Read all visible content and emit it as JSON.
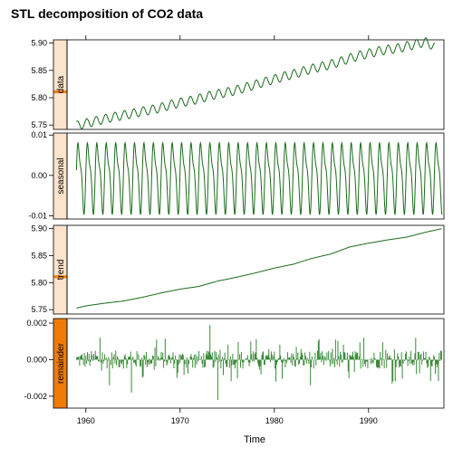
{
  "chart_data": {
    "type": "line",
    "title": "STL decomposition of CO2 data",
    "xlabel": "Time",
    "xlim": [
      1958.0,
      1998.0
    ],
    "x_ticks": [
      1960,
      1970,
      1980,
      1990
    ],
    "x_tick_labels": [
      "1960",
      "1970",
      "1980",
      "1990"
    ],
    "line_color": "#1b6b1b",
    "remainder_color": "#3c8a3c",
    "strip_fill": "#fde3cc",
    "strip_fill_active": "#f07b06",
    "marker_color": "#f07b06",
    "panels": [
      {
        "name": "data",
        "ylim": [
          5.742,
          5.906
        ],
        "y_ticks": [
          5.75,
          5.8,
          5.85,
          5.9
        ],
        "y_tick_labels": [
          "5.75",
          "5.80",
          "5.85",
          "5.90"
        ],
        "strip_active": false,
        "marker_frac": 0.42,
        "series": [
          {
            "x": 1959.0,
            "y": 5.749
          },
          {
            "x": 1960.0,
            "y": 5.753
          },
          {
            "x": 1961.0,
            "y": 5.757
          },
          {
            "x": 1962.0,
            "y": 5.761
          },
          {
            "x": 1963.0,
            "y": 5.765
          },
          {
            "x": 1964.0,
            "y": 5.768
          },
          {
            "x": 1965.0,
            "y": 5.771
          },
          {
            "x": 1966.0,
            "y": 5.775
          },
          {
            "x": 1967.0,
            "y": 5.778
          },
          {
            "x": 1968.0,
            "y": 5.782
          },
          {
            "x": 1969.0,
            "y": 5.787
          },
          {
            "x": 1970.0,
            "y": 5.791
          },
          {
            "x": 1971.0,
            "y": 5.794
          },
          {
            "x": 1972.0,
            "y": 5.798
          },
          {
            "x": 1973.0,
            "y": 5.803
          },
          {
            "x": 1974.0,
            "y": 5.807
          },
          {
            "x": 1975.0,
            "y": 5.81
          },
          {
            "x": 1976.0,
            "y": 5.814
          },
          {
            "x": 1977.0,
            "y": 5.819
          },
          {
            "x": 1978.0,
            "y": 5.824
          },
          {
            "x": 1979.0,
            "y": 5.829
          },
          {
            "x": 1980.0,
            "y": 5.834
          },
          {
            "x": 1981.0,
            "y": 5.839
          },
          {
            "x": 1982.0,
            "y": 5.843
          },
          {
            "x": 1983.0,
            "y": 5.848
          },
          {
            "x": 1984.0,
            "y": 5.853
          },
          {
            "x": 1985.0,
            "y": 5.857
          },
          {
            "x": 1986.0,
            "y": 5.861
          },
          {
            "x": 1987.0,
            "y": 5.866
          },
          {
            "x": 1988.0,
            "y": 5.872
          },
          {
            "x": 1989.0,
            "y": 5.877
          },
          {
            "x": 1990.0,
            "y": 5.881
          },
          {
            "x": 1991.0,
            "y": 5.885
          },
          {
            "x": 1992.0,
            "y": 5.888
          },
          {
            "x": 1993.0,
            "y": 5.89
          },
          {
            "x": 1994.0,
            "y": 5.894
          },
          {
            "x": 1995.0,
            "y": 5.898
          },
          {
            "x": 1996.0,
            "y": 5.902
          },
          {
            "x": 1997.0,
            "y": 5.894
          }
        ]
      },
      {
        "name": "seasonal",
        "ylim": [
          -0.0108,
          0.0105
        ],
        "y_ticks": [
          -0.01,
          0.0,
          0.01
        ],
        "y_tick_labels": [
          "-0.01",
          "0.00",
          "0.01"
        ],
        "strip_active": false,
        "marker_frac": null,
        "series": [
          {
            "x": 1959.0,
            "y": 0.0
          },
          {
            "x": 1959.3,
            "y": 0.0092
          },
          {
            "x": 1959.8,
            "y": -0.0098
          },
          {
            "x": 1960.3,
            "y": 0.0093
          },
          {
            "x": 1960.8,
            "y": -0.0097
          },
          {
            "x": 1961.3,
            "y": 0.0093
          },
          {
            "x": 1961.8,
            "y": -0.0097
          },
          {
            "x": 1970.3,
            "y": 0.0094
          },
          {
            "x": 1970.8,
            "y": -0.0096
          },
          {
            "x": 1980.3,
            "y": 0.0094
          },
          {
            "x": 1980.8,
            "y": -0.0095
          },
          {
            "x": 1990.3,
            "y": 0.0093
          },
          {
            "x": 1990.8,
            "y": -0.0097
          },
          {
            "x": 1997.3,
            "y": 0.0092
          },
          {
            "x": 1997.8,
            "y": -0.0098
          }
        ]
      },
      {
        "name": "trend",
        "ylim": [
          5.742,
          5.906
        ],
        "y_ticks": [
          5.75,
          5.8,
          5.85,
          5.9
        ],
        "y_tick_labels": [
          "5.75",
          "5.80",
          "5.85",
          "5.90"
        ],
        "strip_active": false,
        "marker_frac": 0.42,
        "series": [
          {
            "x": 1959.0,
            "y": 5.753
          },
          {
            "x": 1960.0,
            "y": 5.757
          },
          {
            "x": 1962.0,
            "y": 5.762
          },
          {
            "x": 1964.0,
            "y": 5.766
          },
          {
            "x": 1966.0,
            "y": 5.773
          },
          {
            "x": 1968.0,
            "y": 5.781
          },
          {
            "x": 1970.0,
            "y": 5.788
          },
          {
            "x": 1972.0,
            "y": 5.793
          },
          {
            "x": 1974.0,
            "y": 5.803
          },
          {
            "x": 1976.0,
            "y": 5.81
          },
          {
            "x": 1978.0,
            "y": 5.818
          },
          {
            "x": 1980.0,
            "y": 5.827
          },
          {
            "x": 1982.0,
            "y": 5.834
          },
          {
            "x": 1984.0,
            "y": 5.845
          },
          {
            "x": 1986.0,
            "y": 5.853
          },
          {
            "x": 1988.0,
            "y": 5.866
          },
          {
            "x": 1990.0,
            "y": 5.873
          },
          {
            "x": 1992.0,
            "y": 5.879
          },
          {
            "x": 1994.0,
            "y": 5.884
          },
          {
            "x": 1996.0,
            "y": 5.893
          },
          {
            "x": 1997.8,
            "y": 5.9
          }
        ]
      },
      {
        "name": "remainder",
        "ylim": [
          -0.00265,
          0.00225
        ],
        "y_ticks": [
          -0.002,
          0.0,
          0.002
        ],
        "y_tick_labels": [
          "-0.002",
          "0.000",
          "0.002"
        ],
        "strip_active": true,
        "marker_frac": null,
        "series": [
          {
            "x": 1959.0,
            "y": 0.0001
          },
          {
            "x": 1961.5,
            "y": 0.0012
          },
          {
            "x": 1962.5,
            "y": -0.0014
          },
          {
            "x": 1964.8,
            "y": -0.0018
          },
          {
            "x": 1967.5,
            "y": 0.0011
          },
          {
            "x": 1969.7,
            "y": -0.001
          },
          {
            "x": 1973.2,
            "y": 0.0019
          },
          {
            "x": 1974.0,
            "y": -0.0022
          },
          {
            "x": 1977.5,
            "y": 0.001
          },
          {
            "x": 1980.2,
            "y": -0.0012
          },
          {
            "x": 1983.8,
            "y": -0.0014
          },
          {
            "x": 1986.5,
            "y": 0.0011
          },
          {
            "x": 1989.5,
            "y": 0.0012
          },
          {
            "x": 1992.5,
            "y": -0.0013
          },
          {
            "x": 1995.0,
            "y": 0.0012
          },
          {
            "x": 1997.8,
            "y": -0.0008
          }
        ]
      }
    ]
  }
}
